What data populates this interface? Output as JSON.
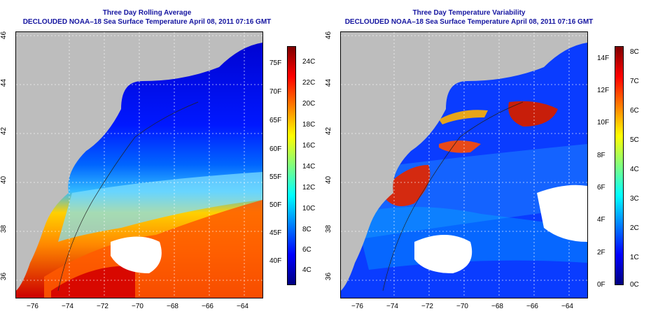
{
  "left_map": {
    "title": "Three Day Rolling Average",
    "subtitle": "DECLOUDED NOAA–18 Sea Surface Temperature April 08, 2011 07:16 GMT",
    "colorbar_left_labels": [
      "75F",
      "70F",
      "65F",
      "60F",
      "55F",
      "50F",
      "45F",
      "40F"
    ],
    "colorbar_right_labels": [
      "24C",
      "22C",
      "20C",
      "18C",
      "16C",
      "14C",
      "12C",
      "10C",
      "8C",
      "6C",
      "4C"
    ]
  },
  "right_map": {
    "title": "Three Day Temperature Variability",
    "subtitle": "DECLOUDED NOAA–18 Sea Surface Temperature April 08, 2011 07:16 GMT",
    "colorbar_left_labels": [
      "14F",
      "12F",
      "10F",
      "8F",
      "6F",
      "4F",
      "2F",
      "0F"
    ],
    "colorbar_right_labels": [
      "8C",
      "7C",
      "6C",
      "5C",
      "4C",
      "3C",
      "2C",
      "1C",
      "0C"
    ]
  },
  "x_ticks": [
    "−76",
    "−74",
    "−72",
    "−70",
    "−68",
    "−66",
    "−64"
  ],
  "y_ticks": [
    "46",
    "44",
    "42",
    "40",
    "38",
    "36"
  ],
  "colors": {
    "land": "#bdbdbd",
    "title": "#1515a0",
    "sst_scale": [
      "#00007f",
      "#0000ff",
      "#007fff",
      "#00ffff",
      "#7fff7f",
      "#ffff00",
      "#ff7f00",
      "#ff0000",
      "#7f0000"
    ]
  }
}
